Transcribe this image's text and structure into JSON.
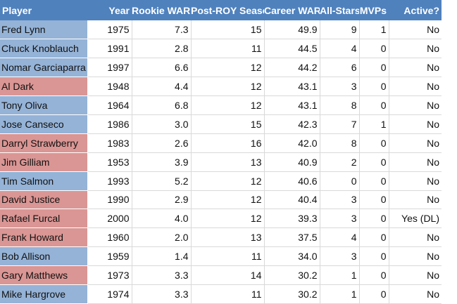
{
  "colors": {
    "header_bg": "#4f81bd",
    "header_text": "#ffffff",
    "league_blue": "#95b3d7",
    "league_red": "#da9694"
  },
  "headers": {
    "player": "Player",
    "year": "Year",
    "rookie_war": "Rookie WAR",
    "post_roy": "Post-ROY Seasons",
    "career_war": "Career WAR",
    "all_stars": "All-Stars",
    "mvps": "MVPs",
    "active": "Active?"
  },
  "rows": [
    {
      "player": "Fred Lynn",
      "year": "1975",
      "rookie_war": "7.3",
      "post_roy": "15",
      "career_war": "49.9",
      "all_stars": "9",
      "mvps": "1",
      "active": "No",
      "highlight": "blue"
    },
    {
      "player": "Chuck Knoblauch",
      "year": "1991",
      "rookie_war": "2.8",
      "post_roy": "11",
      "career_war": "44.5",
      "all_stars": "4",
      "mvps": "0",
      "active": "No",
      "highlight": "blue"
    },
    {
      "player": "Nomar Garciaparra",
      "year": "1997",
      "rookie_war": "6.6",
      "post_roy": "12",
      "career_war": "44.2",
      "all_stars": "6",
      "mvps": "0",
      "active": "No",
      "highlight": "blue"
    },
    {
      "player": "Al Dark",
      "year": "1948",
      "rookie_war": "4.4",
      "post_roy": "12",
      "career_war": "43.1",
      "all_stars": "3",
      "mvps": "0",
      "active": "No",
      "highlight": "red"
    },
    {
      "player": "Tony Oliva",
      "year": "1964",
      "rookie_war": "6.8",
      "post_roy": "12",
      "career_war": "43.1",
      "all_stars": "8",
      "mvps": "0",
      "active": "No",
      "highlight": "blue"
    },
    {
      "player": "Jose Canseco",
      "year": "1986",
      "rookie_war": "3.0",
      "post_roy": "15",
      "career_war": "42.3",
      "all_stars": "7",
      "mvps": "1",
      "active": "No",
      "highlight": "blue"
    },
    {
      "player": "Darryl Strawberry",
      "year": "1983",
      "rookie_war": "2.6",
      "post_roy": "16",
      "career_war": "42.0",
      "all_stars": "8",
      "mvps": "0",
      "active": "No",
      "highlight": "red"
    },
    {
      "player": "Jim Gilliam",
      "year": "1953",
      "rookie_war": "3.9",
      "post_roy": "13",
      "career_war": "40.9",
      "all_stars": "2",
      "mvps": "0",
      "active": "No",
      "highlight": "red"
    },
    {
      "player": "Tim Salmon",
      "year": "1993",
      "rookie_war": "5.2",
      "post_roy": "12",
      "career_war": "40.6",
      "all_stars": "0",
      "mvps": "0",
      "active": "No",
      "highlight": "blue"
    },
    {
      "player": "David Justice",
      "year": "1990",
      "rookie_war": "2.9",
      "post_roy": "12",
      "career_war": "40.4",
      "all_stars": "3",
      "mvps": "0",
      "active": "No",
      "highlight": "red"
    },
    {
      "player": "Rafael Furcal",
      "year": "2000",
      "rookie_war": "4.0",
      "post_roy": "12",
      "career_war": "39.3",
      "all_stars": "3",
      "mvps": "0",
      "active": "Yes (DL)",
      "highlight": "red"
    },
    {
      "player": "Frank Howard",
      "year": "1960",
      "rookie_war": "2.0",
      "post_roy": "13",
      "career_war": "37.5",
      "all_stars": "4",
      "mvps": "0",
      "active": "No",
      "highlight": "red"
    },
    {
      "player": "Bob Allison",
      "year": "1959",
      "rookie_war": "1.4",
      "post_roy": "11",
      "career_war": "34.0",
      "all_stars": "3",
      "mvps": "0",
      "active": "No",
      "highlight": "blue"
    },
    {
      "player": "Gary Matthews",
      "year": "1973",
      "rookie_war": "3.3",
      "post_roy": "14",
      "career_war": "30.2",
      "all_stars": "1",
      "mvps": "0",
      "active": "No",
      "highlight": "red"
    },
    {
      "player": "Mike Hargrove",
      "year": "1974",
      "rookie_war": "3.3",
      "post_roy": "11",
      "career_war": "30.2",
      "all_stars": "1",
      "mvps": "0",
      "active": "No",
      "highlight": "blue"
    }
  ]
}
